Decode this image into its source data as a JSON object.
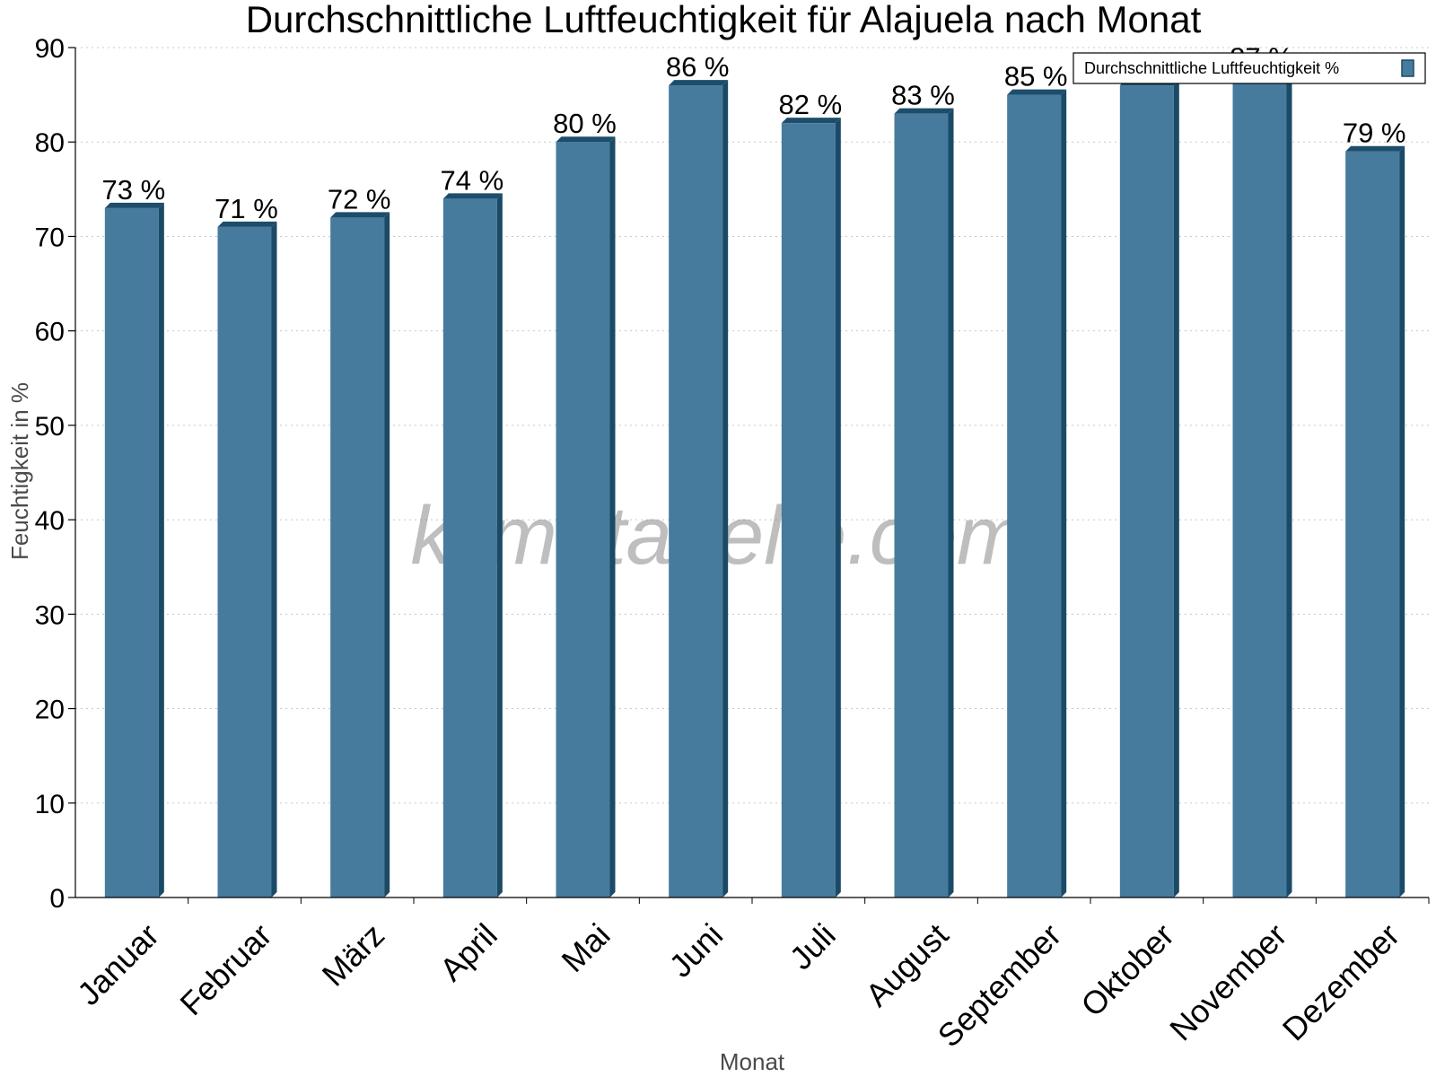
{
  "watermark": "klimatabelle.com",
  "colors": {
    "bar_front": "#467b9d",
    "bar_top": "#1d4d6c",
    "bar_side": "#1b4a67",
    "grid": "#c8c8c8",
    "axis": "#000000"
  },
  "chart_data": {
    "type": "bar",
    "title": "Durchschnittliche Luftfeuchtigkeit für Alajuela nach Monat",
    "xlabel": "Monat",
    "ylabel": "Feuchtigkeit in %",
    "ylim": [
      0,
      90
    ],
    "yticks": [
      0,
      10,
      20,
      30,
      40,
      50,
      60,
      70,
      80,
      90
    ],
    "grid": true,
    "legend_position": "top-right",
    "categories": [
      "Januar",
      "Februar",
      "März",
      "April",
      "Mai",
      "Juni",
      "Juli",
      "August",
      "September",
      "Oktober",
      "November",
      "Dezember"
    ],
    "series": [
      {
        "name": "Durchschnittliche Luftfeuchtigkeit %",
        "values": [
          73,
          71,
          72,
          74,
          80,
          86,
          82,
          83,
          85,
          86,
          87,
          79
        ],
        "labels": [
          "73 %",
          "71 %",
          "72 %",
          "74 %",
          "80 %",
          "86 %",
          "82 %",
          "83 %",
          "85 %",
          "86 %",
          "87 %",
          "79 %"
        ]
      }
    ]
  }
}
